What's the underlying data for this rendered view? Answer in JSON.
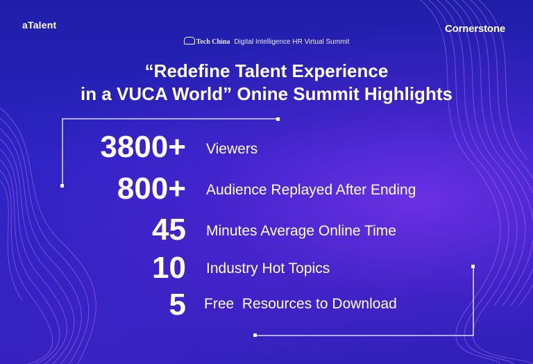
{
  "brand_left": "aTalent",
  "brand_right": "Cornerstone",
  "partner": "Tech China",
  "event": "Digital Intelligence HR Virtual Summit",
  "title_line1": "“Redefine Talent Experience",
  "title_line2": "in a VUCA World” Onine Summit Highlights",
  "stats": [
    {
      "value": "3800+",
      "label": "Viewers"
    },
    {
      "value": "800+",
      "label": "Audience Replayed After Ending"
    },
    {
      "value": "45",
      "label": "Minutes Average Online Time"
    },
    {
      "value": "10",
      "label": "Industry Hot Topics"
    },
    {
      "value": "5",
      "label": "Free  Resources to Download"
    }
  ],
  "colors": {
    "bg_top": "#1f1ea8",
    "accent_glow": "#a03cff",
    "text": "#ffffff"
  }
}
